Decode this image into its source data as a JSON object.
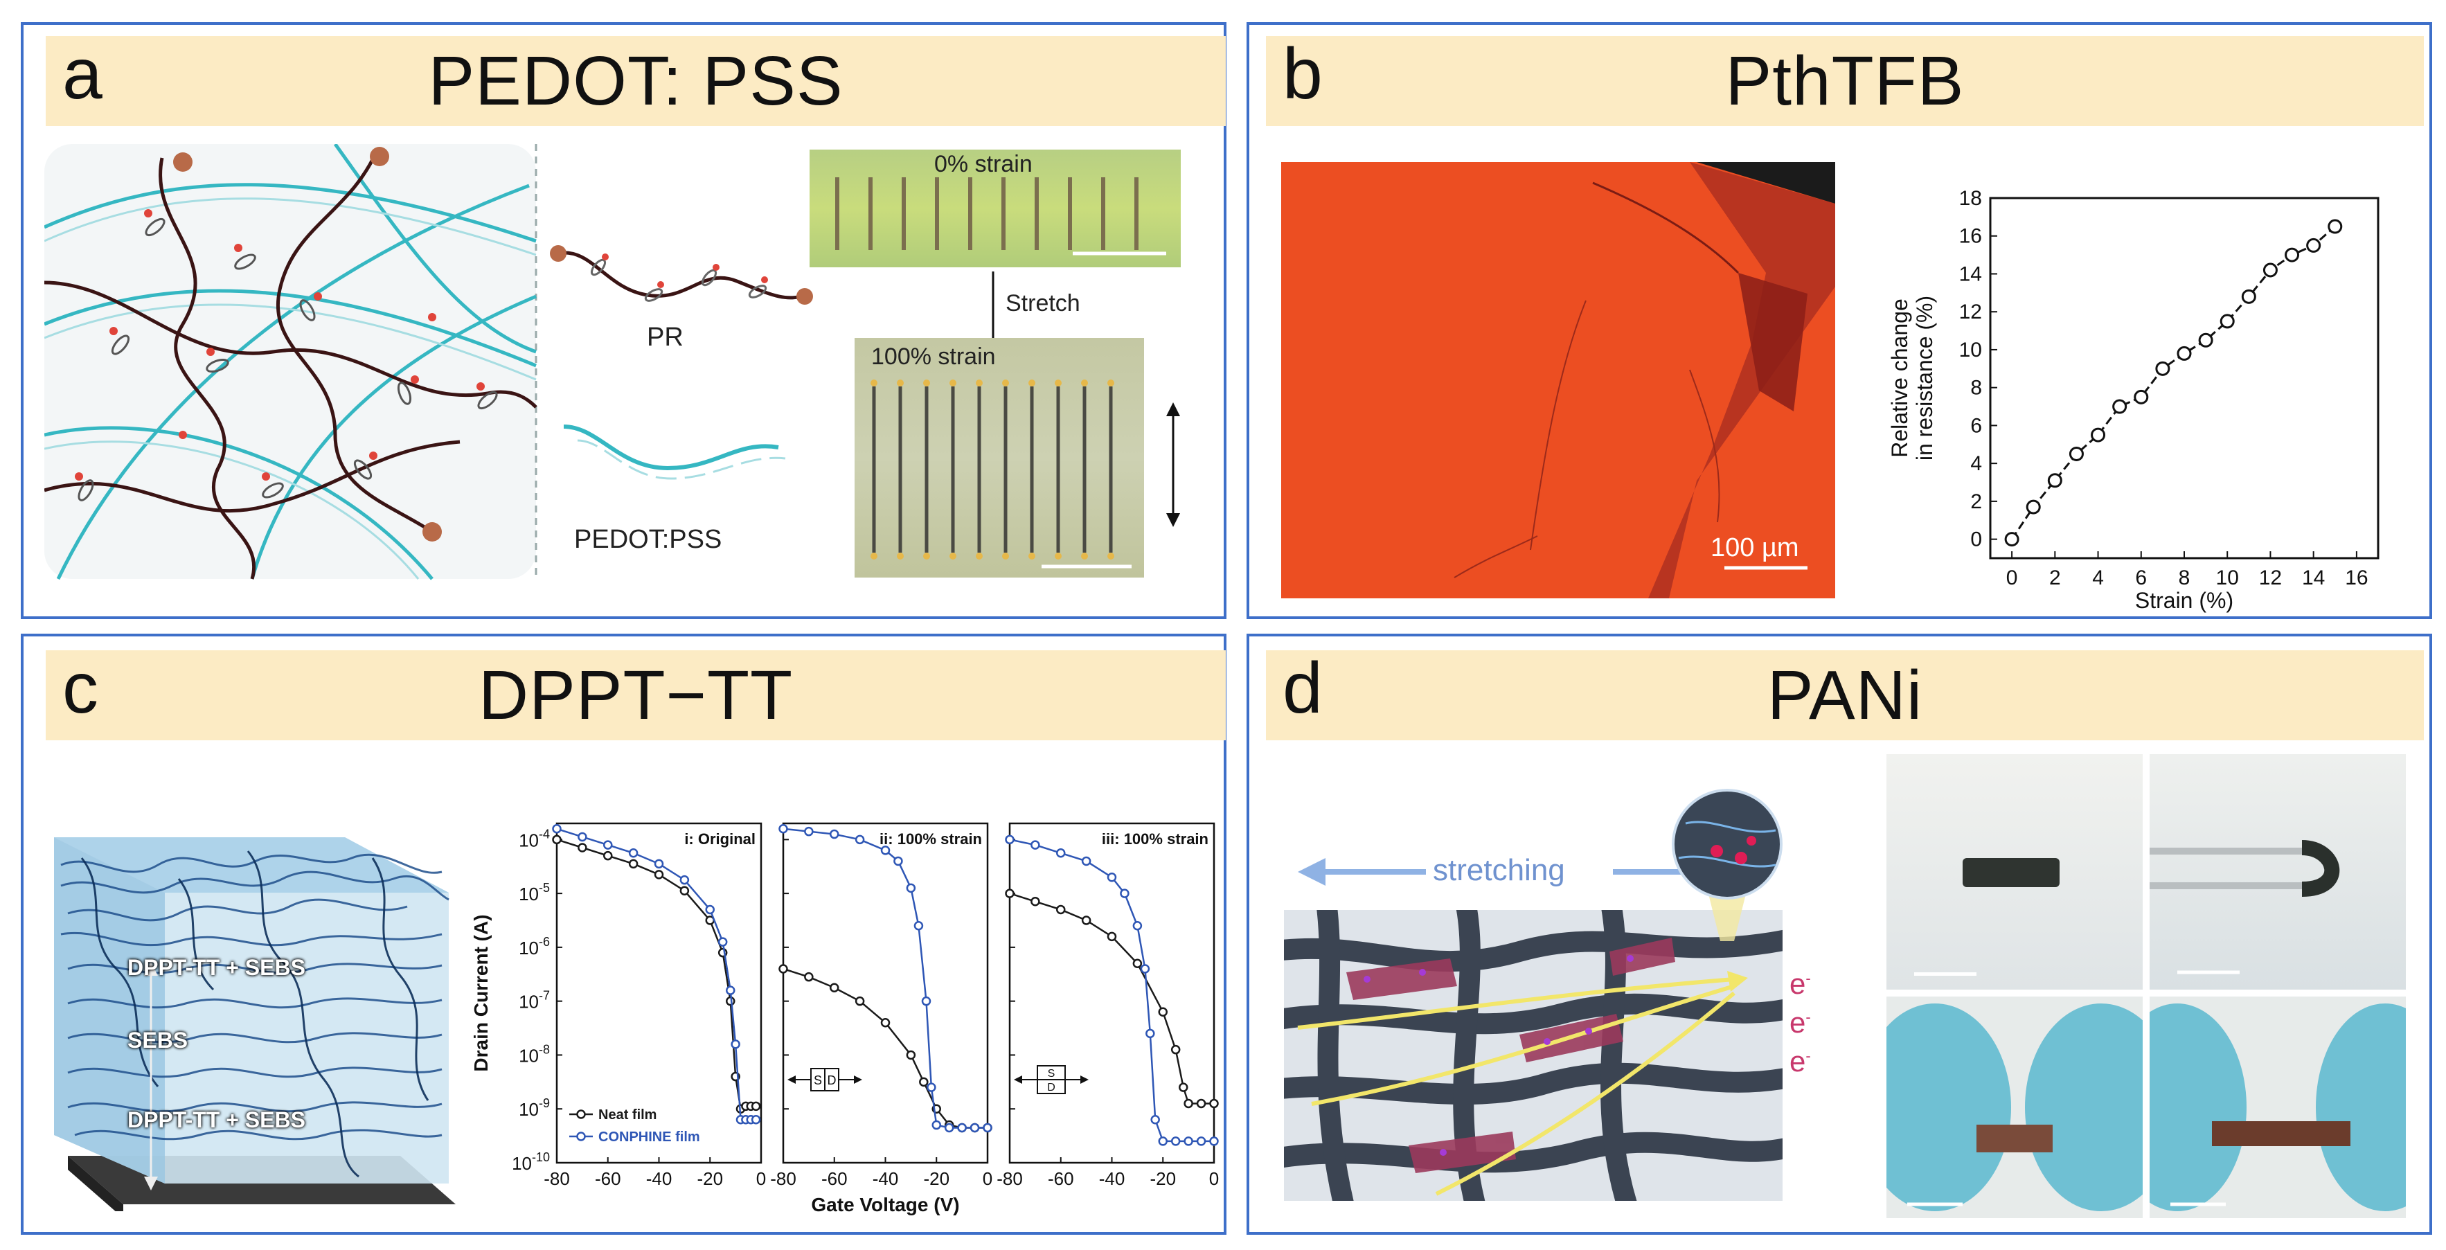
{
  "panels": {
    "a": {
      "letter": "a",
      "title": "PEDOT: PSS",
      "labels": {
        "pr": "PR",
        "pedot": "PEDOT:PSS",
        "strain0": "0% strain",
        "stretch": "Stretch",
        "strain100": "100% strain"
      }
    },
    "b": {
      "letter": "b",
      "title": "PthTFB",
      "scale_bar": "100 µm"
    },
    "c": {
      "letter": "c",
      "title": "DPPT−TT",
      "cube_labels": [
        "DPPT-TT + SEBS",
        "SEBS",
        "DPPT-TT + SEBS"
      ],
      "legend": [
        "Neat film",
        "CONPHINE film"
      ],
      "inset_labels": {
        "s": "S",
        "d": "D"
      }
    },
    "d": {
      "letter": "d",
      "title": "PANi",
      "stretching": "stretching",
      "electron": "e",
      "electron_sup": "-"
    }
  },
  "chart_data": [
    {
      "type": "line",
      "title": "",
      "xlabel": "Strain (%)",
      "ylabel": "Relative change in resistance (%)",
      "ylabel_lines": [
        "Relative change",
        "in resistance (%)"
      ],
      "xlim": [
        -1,
        17
      ],
      "ylim": [
        -1,
        18
      ],
      "xticks": [
        0,
        2,
        4,
        6,
        8,
        10,
        12,
        14,
        16
      ],
      "yticks": [
        0,
        2,
        4,
        6,
        8,
        10,
        12,
        14,
        16,
        18
      ],
      "series": [
        {
          "name": "PthTFB",
          "x": [
            0,
            1,
            2,
            3,
            4,
            5,
            6,
            7,
            8,
            9,
            10,
            11,
            12,
            13,
            14,
            15
          ],
          "y": [
            0,
            1.7,
            3.1,
            4.5,
            5.5,
            7.0,
            7.5,
            9.0,
            9.8,
            10.5,
            11.5,
            12.8,
            14.2,
            15.0,
            15.5,
            16.5
          ]
        }
      ]
    },
    {
      "type": "line",
      "xlabel": "Gate Voltage (V)",
      "ylabel": "Drain Current (A)",
      "xticks": [
        -80,
        -60,
        -40,
        -20,
        0
      ],
      "ytick_labels": [
        "10-4",
        "10-5",
        "10-6",
        "10-7",
        "10-8",
        "10-9",
        "10-10"
      ],
      "ylog_range": [
        -10,
        -3.7
      ],
      "subplots": [
        {
          "title": "i: Original",
          "series": [
            {
              "name": "Neat film",
              "color": "#1a1a1a",
              "x": [
                -80,
                -70,
                -60,
                -50,
                -40,
                -30,
                -20,
                -15,
                -12,
                -10,
                -8,
                -6,
                -4,
                -2
              ],
              "logy": [
                -4.0,
                -4.15,
                -4.3,
                -4.45,
                -4.65,
                -4.95,
                -5.5,
                -6.1,
                -7.0,
                -8.4,
                -9.0,
                -8.95,
                -8.95,
                -8.95
              ]
            },
            {
              "name": "CONPHINE film",
              "color": "#2e56b5",
              "x": [
                -80,
                -70,
                -60,
                -50,
                -40,
                -30,
                -20,
                -15,
                -12,
                -10,
                -8,
                -6,
                -4,
                -2
              ],
              "logy": [
                -3.8,
                -3.95,
                -4.1,
                -4.25,
                -4.45,
                -4.75,
                -5.3,
                -5.9,
                -6.8,
                -7.8,
                -9.2,
                -9.2,
                -9.2,
                -9.2
              ]
            }
          ]
        },
        {
          "title": "ii: 100% strain",
          "series": [
            {
              "name": "Neat film",
              "color": "#1a1a1a",
              "x": [
                -80,
                -70,
                -60,
                -50,
                -40,
                -30,
                -25,
                -20,
                -15,
                -10,
                -5,
                0
              ],
              "logy": [
                -6.4,
                -6.55,
                -6.75,
                -7.0,
                -7.4,
                -8.0,
                -8.5,
                -9.0,
                -9.3,
                -9.35,
                -9.35,
                -9.35
              ]
            },
            {
              "name": "CONPHINE film",
              "color": "#2e56b5",
              "x": [
                -80,
                -70,
                -60,
                -50,
                -40,
                -35,
                -30,
                -27,
                -24,
                -22,
                -20,
                -15,
                -10,
                -5,
                0
              ],
              "logy": [
                -3.8,
                -3.85,
                -3.9,
                -4.0,
                -4.2,
                -4.4,
                -4.9,
                -5.6,
                -7.0,
                -8.6,
                -9.3,
                -9.35,
                -9.35,
                -9.35,
                -9.35
              ]
            }
          ]
        },
        {
          "title": "iii: 100% strain",
          "series": [
            {
              "name": "Neat film",
              "color": "#1a1a1a",
              "x": [
                -80,
                -70,
                -60,
                -50,
                -40,
                -30,
                -20,
                -15,
                -12,
                -10,
                -5,
                0
              ],
              "logy": [
                -5.0,
                -5.15,
                -5.3,
                -5.5,
                -5.8,
                -6.3,
                -7.2,
                -7.9,
                -8.6,
                -8.9,
                -8.9,
                -8.9
              ]
            },
            {
              "name": "CONPHINE film",
              "color": "#2e56b5",
              "x": [
                -80,
                -70,
                -60,
                -50,
                -40,
                -35,
                -30,
                -27,
                -25,
                -23,
                -20,
                -15,
                -10,
                -5,
                0
              ],
              "logy": [
                -4.0,
                -4.1,
                -4.25,
                -4.4,
                -4.7,
                -5.0,
                -5.6,
                -6.4,
                -7.6,
                -9.2,
                -9.6,
                -9.6,
                -9.6,
                -9.6,
                -9.6
              ]
            }
          ]
        }
      ]
    }
  ]
}
